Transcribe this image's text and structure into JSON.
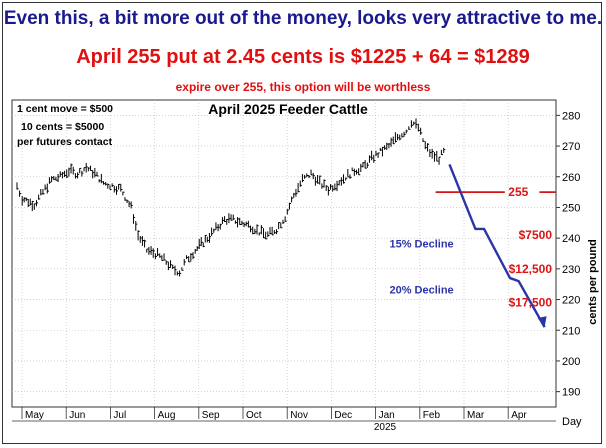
{
  "header": {
    "headline": "Even this, a bit more out of the money, looks very attractive to me.",
    "subheadline": "April 255 put at 2.45 cents is $1225 + 64 = $1289",
    "note": "expire over 255, this option will be worthless"
  },
  "chart_data": {
    "type": "candlestick",
    "title": "April 2025 Feeder Cattle",
    "ylabel": "cents per pound",
    "xlabel": "Day",
    "ylim": [
      185,
      285
    ],
    "y_ticks": [
      190,
      200,
      210,
      220,
      230,
      240,
      250,
      260,
      270,
      280
    ],
    "x_months": [
      "May",
      "Jun",
      "Jul",
      "Aug",
      "Sep",
      "Oct",
      "Nov",
      "Dec",
      "Jan",
      "Feb",
      "Mar",
      "Apr"
    ],
    "year_label": "2025",
    "grid": true,
    "info_box": [
      "1 cent move = $500",
      "10 cents = $5000",
      "per futures contact"
    ],
    "price_path": [
      [
        0,
        257
      ],
      [
        0.3,
        253
      ],
      [
        1,
        251
      ],
      [
        1.5,
        255
      ],
      [
        2,
        259
      ],
      [
        2.5,
        260
      ],
      [
        3,
        262
      ],
      [
        3.5,
        261
      ],
      [
        4,
        263
      ],
      [
        4.5,
        261
      ],
      [
        5,
        258
      ],
      [
        5.5,
        257
      ],
      [
        6,
        256
      ],
      [
        6.6,
        250
      ],
      [
        7,
        241
      ],
      [
        7.5,
        236
      ],
      [
        8,
        235
      ],
      [
        8.5,
        233
      ],
      [
        9,
        230
      ],
      [
        9.4,
        229
      ],
      [
        9.8,
        233
      ],
      [
        10.3,
        236
      ],
      [
        11,
        240
      ],
      [
        11.5,
        243
      ],
      [
        12,
        246
      ],
      [
        12.5,
        246
      ],
      [
        13,
        245
      ],
      [
        13.5,
        244
      ],
      [
        14,
        242
      ],
      [
        14.5,
        241
      ],
      [
        15,
        243
      ],
      [
        15.5,
        247
      ],
      [
        16,
        254
      ],
      [
        16.5,
        259
      ],
      [
        17,
        261
      ],
      [
        17.5,
        258
      ],
      [
        18,
        256
      ],
      [
        18.5,
        258
      ],
      [
        19,
        260
      ],
      [
        19.5,
        262
      ],
      [
        20,
        263
      ],
      [
        20.5,
        266
      ],
      [
        21,
        268
      ],
      [
        21.5,
        270
      ],
      [
        22,
        273
      ],
      [
        22.5,
        275
      ],
      [
        22.8,
        278
      ],
      [
        23.2,
        276
      ],
      [
        23.6,
        270
      ],
      [
        24,
        267
      ],
      [
        24.4,
        266
      ],
      [
        24.8,
        269
      ]
    ],
    "strike": {
      "value": 255,
      "label": "255"
    },
    "projection": {
      "path": [
        [
          25,
          264
        ],
        [
          26.5,
          243
        ],
        [
          27,
          243
        ],
        [
          28.5,
          227
        ],
        [
          29,
          226
        ],
        [
          30.5,
          211
        ]
      ],
      "labels": [
        {
          "text": "15% Decline",
          "x": 25,
          "y": 237
        },
        {
          "text": "20% Decline",
          "x": 25,
          "y": 222
        }
      ]
    },
    "value_labels": [
      {
        "text": "$7500",
        "y": 241
      },
      {
        "text": "$12,500",
        "y": 230
      },
      {
        "text": "$17,500",
        "y": 219
      }
    ],
    "colors": {
      "candles": "#000000",
      "strike": "#d81414",
      "projection": "#2b35a8",
      "value_labels": "#d81414"
    }
  }
}
